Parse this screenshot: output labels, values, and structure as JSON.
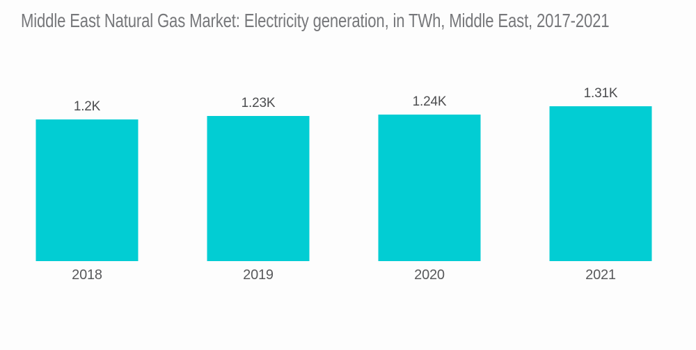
{
  "title": "Middle East Natural Gas Market: Electricity generation, in TWh, Middle East, 2017-2021",
  "colors": {
    "bar": "#02CDD3",
    "title_text": "#76777a",
    "value_label": "#4b4c4e",
    "axis_label": "#58595b",
    "background": "#fdfdfd"
  },
  "chart_data": {
    "type": "bar",
    "title": "Middle East Natural Gas Market: Electricity generation, in TWh, Middle East, 2017-2021",
    "unit": "TWh",
    "categories": [
      "2018",
      "2019",
      "2020",
      "2021"
    ],
    "values": [
      1200,
      1230,
      1240,
      1310
    ],
    "value_labels": [
      "1.2K",
      "1.23K",
      "1.24K",
      "1.31K"
    ],
    "xlabel": "",
    "ylabel": "",
    "grid": false,
    "legend": "none",
    "y_axis_visible": false,
    "x_axis_visible": false
  }
}
